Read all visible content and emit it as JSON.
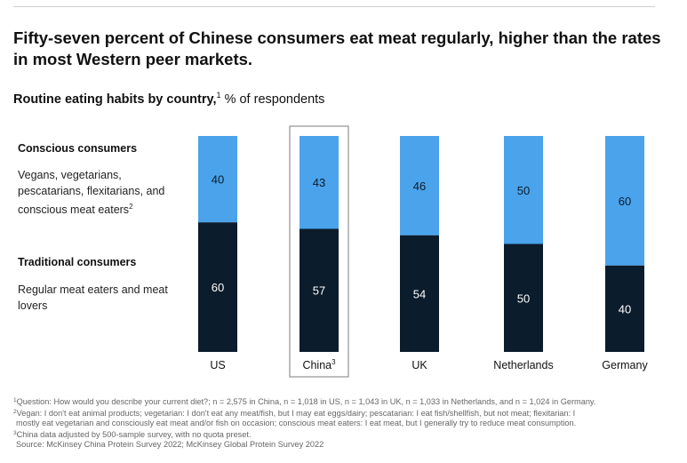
{
  "header": {
    "title": "Fifty-seven percent of Chinese consumers eat meat regularly, higher than the rates in most Western peer markets.",
    "subtitle_bold": "Routine eating habits by country,",
    "subtitle_sup": "1",
    "subtitle_rest": " % of respondents"
  },
  "legend": {
    "conscious_title": "Conscious consumers",
    "conscious_desc": "Vegans, vegetarians, pescatarians, flexitarians, and conscious meat eaters",
    "conscious_sup": "2",
    "traditional_title": "Traditional consumers",
    "traditional_desc": "Regular meat eaters and meat lovers"
  },
  "chart_data": {
    "type": "bar",
    "stacked": true,
    "normalized_total": 100,
    "categories": [
      "US",
      "China",
      "UK",
      "Netherlands",
      "Germany"
    ],
    "category_superscripts": [
      "",
      "3",
      "",
      "",
      ""
    ],
    "highlighted_category": "China",
    "series": [
      {
        "name": "Conscious consumers",
        "values": [
          40,
          43,
          46,
          50,
          60
        ],
        "color": "#4aa3eb"
      },
      {
        "name": "Traditional consumers",
        "values": [
          60,
          57,
          54,
          50,
          40
        ],
        "color": "#0b1c2c"
      }
    ],
    "ylim": [
      0,
      100
    ],
    "title": "Routine eating habits by country",
    "ylabel": "% of respondents"
  },
  "footnotes": {
    "note1": "Question: How would you describe your current diet?; n = 2,575 in China, n = 1,018 in US, n = 1,043 in UK, n = 1,033 in Netherlands, and n = 1,024 in Germany.",
    "note2_line1": "Vegan: I don't eat animal products; vegetarian: I don't eat any meat/fish, but I may eat eggs/dairy; pescatarian: I eat fish/shellfish, but not meat; flexitarian: I",
    "note2_line2": "mostly eat vegetarian and consciously eat meat and/or fish on occasion; conscious meat eaters: I eat meat, but I generally try to reduce meat consumption.",
    "note3": "China data adjusted by 500-sample survey, with no quota preset.",
    "source": "Source: McKinsey China Protein Survey 2022; McKinsey Global Protein Survey 2022"
  }
}
